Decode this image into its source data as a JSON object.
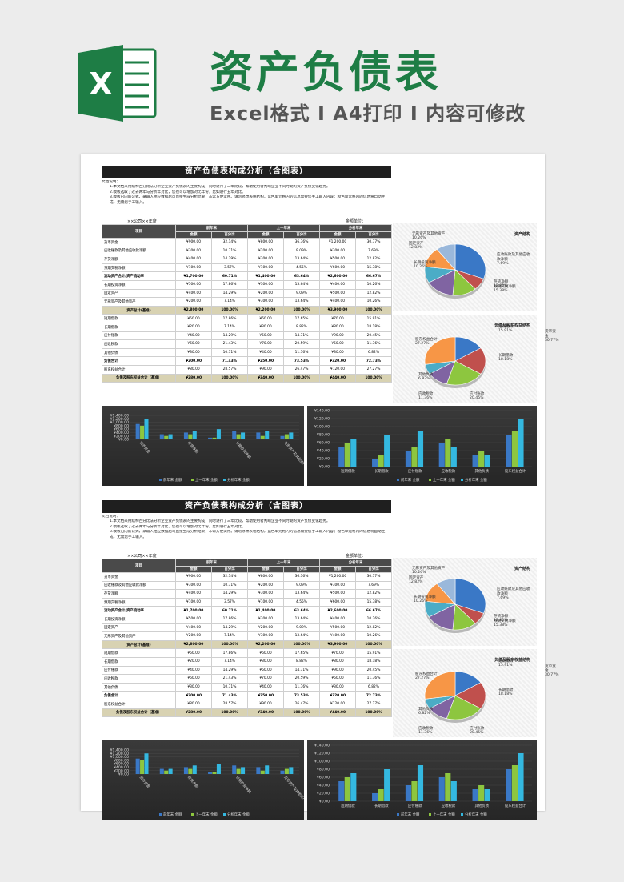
{
  "header": {
    "logo_letter": "X",
    "title": "资产负债表",
    "subtitle": "Excel格式 I A4打印 I 内容可修改"
  },
  "doc": {
    "title": "资产负债表构成分析（含图表）",
    "notes": [
      "文档说明：",
      "1.本文档采用结构百分比法分析企业资产负债表的主要构成，同时进行了三年比较，帮助使用者判断企业不同时期的资产负债变化趋势。",
      "2.模板选取了过去两年与分析年对比，您也可以增加对比年份，比如进行五年对比。",
      "3.模板已内嵌公式，录输入相应数据后可直接生成分析结果，非常方便实用。请勿修改表格结构，蓝色单元格内的信息需要您手工输入内容；橙色单元格内的信息将自动生成，无需您手工输入。"
    ],
    "company": "××公司××年度",
    "unit": "金额单位：",
    "colors": {
      "header": "#4a4a4a",
      "total": "#d8d2b2",
      "blue": "#3a78c6",
      "green": "#8dc63f",
      "cyan": "#34b8e0"
    }
  },
  "table": {
    "head_item": "项目",
    "groups": [
      "前年末",
      "上一年末",
      "分析年末"
    ],
    "sub": [
      "金额",
      "百分比",
      "金额",
      "百分比",
      "金额",
      "百分比"
    ],
    "rows": [
      {
        "name": "货币资金",
        "v": [
          "¥900.00",
          "32.14%",
          "¥800.00",
          "36.36%",
          "¥1,200.00",
          "30.77%"
        ]
      },
      {
        "name": "应收账款及其他应收款净额",
        "v": [
          "¥300.00",
          "10.71%",
          "¥200.00",
          "9.09%",
          "¥300.00",
          "7.69%"
        ]
      },
      {
        "name": "存货净额",
        "v": [
          "¥400.00",
          "14.29%",
          "¥300.00",
          "13.64%",
          "¥500.00",
          "12.82%"
        ]
      },
      {
        "name": "预期交税净额",
        "v": [
          "¥100.00",
          "3.57%",
          "¥100.00",
          "4.55%",
          "¥600.00",
          "15.38%"
        ]
      },
      {
        "name": "流动资产合计/资产流动率",
        "v": [
          "¥1,700.00",
          "60.71%",
          "¥1,400.00",
          "63.64%",
          "¥2,600.00",
          "66.67%"
        ],
        "bold": true
      },
      {
        "name": "长期投资净额",
        "v": [
          "¥500.00",
          "17.86%",
          "¥300.00",
          "13.64%",
          "¥400.00",
          "10.26%"
        ]
      },
      {
        "name": "固定资产",
        "v": [
          "¥400.00",
          "14.29%",
          "¥200.00",
          "9.09%",
          "¥500.00",
          "12.82%"
        ]
      },
      {
        "name": "无形资产及其他资产",
        "v": [
          "¥200.00",
          "7.14%",
          "¥300.00",
          "13.64%",
          "¥400.00",
          "10.26%"
        ]
      },
      {
        "name": "资产总计(基准)",
        "v": [
          "¥2,800.00",
          "100.00%",
          "¥2,200.00",
          "100.00%",
          "¥3,900.00",
          "100.00%"
        ],
        "total": true
      },
      {
        "name": "短期借款",
        "v": [
          "¥50.00",
          "17.86%",
          "¥60.00",
          "17.65%",
          "¥70.00",
          "15.91%"
        ]
      },
      {
        "name": "长期借款",
        "v": [
          "¥20.00",
          "7.14%",
          "¥30.00",
          "8.82%",
          "¥80.00",
          "18.18%"
        ]
      },
      {
        "name": "应付账款",
        "v": [
          "¥40.00",
          "14.29%",
          "¥50.00",
          "14.71%",
          "¥90.00",
          "20.45%"
        ]
      },
      {
        "name": "应收税款",
        "v": [
          "¥60.00",
          "21.43%",
          "¥70.00",
          "20.59%",
          "¥50.00",
          "11.36%"
        ]
      },
      {
        "name": "其他负债",
        "v": [
          "¥30.00",
          "10.71%",
          "¥40.00",
          "11.76%",
          "¥30.00",
          "6.82%"
        ]
      },
      {
        "name": "负债合计",
        "v": [
          "¥200.00",
          "71.43%",
          "¥250.00",
          "73.53%",
          "¥320.00",
          "72.73%"
        ],
        "bold": true
      },
      {
        "name": "股东权益合计",
        "v": [
          "¥80.00",
          "28.57%",
          "¥90.00",
          "26.47%",
          "¥120.00",
          "27.27%"
        ]
      },
      {
        "name": "负债及股东权益合计（基准）",
        "v": [
          "¥280.00",
          "100.00%",
          "¥340.00",
          "100.00%",
          "¥440.00",
          "100.00%"
        ],
        "total": true
      }
    ]
  },
  "pie1": {
    "title": "资产结构",
    "values": [
      30.77,
      7.69,
      12.82,
      15.38,
      10.26,
      12.82,
      10.26
    ],
    "colors": [
      "#3a78c6",
      "#c0504d",
      "#8dc63f",
      "#8064a2",
      "#4bacc6",
      "#f79646",
      "#9ab8db"
    ],
    "labels": [
      {
        "t": "货币资金",
        "p": "30.77%"
      },
      {
        "t": "应收账款及其他应收款净额",
        "p": "7.69%"
      },
      {
        "t": "存货净额",
        "p": "12.82%"
      },
      {
        "t": "预期交税净额",
        "p": "15.38%"
      },
      {
        "t": "长期投资净额",
        "p": "10.26%"
      },
      {
        "t": "固定资产",
        "p": "12.82%"
      },
      {
        "t": "无形资产及其他资产",
        "p": "10.26%"
      }
    ]
  },
  "pie2": {
    "title": "负债及股东权益结构",
    "values": [
      15.91,
      18.18,
      20.45,
      11.36,
      6.82,
      27.27
    ],
    "colors": [
      "#3a78c6",
      "#c0504d",
      "#8dc63f",
      "#8064a2",
      "#4bacc6",
      "#f79646"
    ],
    "labels": [
      {
        "t": "短期借款",
        "p": "15.91%"
      },
      {
        "t": "长期借款",
        "p": "18.18%"
      },
      {
        "t": "应付账款",
        "p": "20.45%"
      },
      {
        "t": "应收税款",
        "p": "11.36%"
      },
      {
        "t": "其他负债",
        "p": "6.82%"
      },
      {
        "t": "股东权益合计",
        "p": "27.27%"
      }
    ]
  },
  "chart_data": [
    {
      "type": "bar",
      "categories": [
        "货币资金",
        "应收账款及其他应收款净额",
        "存货净额",
        "预期交税净额",
        "长期投资净额",
        "固定资产",
        "无形资产及其他资产"
      ],
      "x_tick_labels": [
        "货币资金",
        "存货净额",
        "长期投资净额",
        "无形资产及其他资产"
      ],
      "series": [
        {
          "name": "前年末 金额",
          "values": [
            900,
            300,
            400,
            100,
            500,
            400,
            200
          ]
        },
        {
          "name": "上一年末 金额",
          "values": [
            800,
            200,
            300,
            100,
            300,
            200,
            300
          ]
        },
        {
          "name": "分析年末 金额",
          "values": [
            1200,
            300,
            500,
            600,
            400,
            500,
            400
          ]
        }
      ],
      "y_ticks": [
        "¥1,400.00",
        "¥1,200.00",
        "¥1,000.00",
        "¥800.00",
        "¥600.00",
        "¥400.00",
        "¥200.00",
        "¥0.00"
      ],
      "ylim": [
        0,
        1400
      ]
    },
    {
      "type": "bar",
      "categories": [
        "短期借款",
        "长期借款",
        "应付账款",
        "应收税款",
        "其他负债",
        "股东权益合计"
      ],
      "series": [
        {
          "name": "前年末 金额",
          "values": [
            50,
            20,
            40,
            60,
            30,
            80
          ]
        },
        {
          "name": "上一年末 金额",
          "values": [
            60,
            30,
            50,
            70,
            40,
            90
          ]
        },
        {
          "name": "分析年末 金额",
          "values": [
            70,
            80,
            90,
            50,
            30,
            120
          ]
        }
      ],
      "y_ticks": [
        "¥140.00",
        "¥120.00",
        "¥100.00",
        "¥80.00",
        "¥60.00",
        "¥40.00",
        "¥20.00",
        "¥0.00"
      ],
      "ylim": [
        0,
        140
      ]
    }
  ]
}
